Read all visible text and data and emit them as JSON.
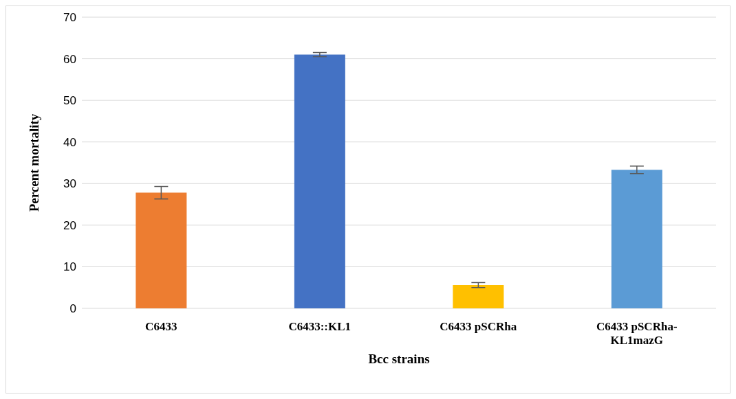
{
  "chart_data": {
    "type": "bar",
    "xlabel": "Bcc strains",
    "ylabel": "Percent mortality",
    "categories": [
      "C6433",
      "C6433::KL1",
      "C6433 pSCRha",
      "C6433 pSCRha-KL1mazG"
    ],
    "values": [
      27.8,
      61.0,
      5.6,
      33.3
    ],
    "colors": [
      "#ed7d31",
      "#4472c4",
      "#ffc000",
      "#5b9bd5"
    ],
    "errors": [
      1.5,
      0.5,
      0.6,
      0.9
    ],
    "ylim": [
      0,
      70
    ],
    "yticks": [
      0,
      10,
      20,
      30,
      40,
      50,
      60,
      70
    ],
    "grid": "y",
    "legend": false
  }
}
